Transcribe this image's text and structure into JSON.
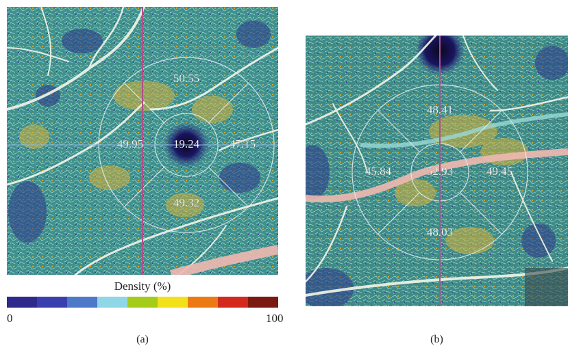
{
  "panel_a": {
    "caption": "(a)",
    "regions": {
      "superior": "50.55",
      "nasal_left": "49.95",
      "center": "19.24",
      "temporal_right": "47.15",
      "inferior": "49.32"
    }
  },
  "panel_b": {
    "caption": "(b)",
    "regions": {
      "superior": "48.41",
      "left": "45.84",
      "center": "52.93",
      "right": "49.45",
      "inferior": "48.03"
    }
  },
  "legend": {
    "title": "Density (%)",
    "min_label": "0",
    "max_label": "100",
    "colors": [
      "#2e2a8c",
      "#3a3fb0",
      "#4d7ac8",
      "#8fd6e6",
      "#a6cc1a",
      "#f2e11a",
      "#ec7a12",
      "#d42a1e",
      "#7a1a10"
    ]
  },
  "colors": {
    "background_teal": "#3f8f8c",
    "vessel_white": "#f4f6e8",
    "yellow_patch": "#c8a83a",
    "dark_fovea": "#151240",
    "scan_line": "#b0508a"
  }
}
